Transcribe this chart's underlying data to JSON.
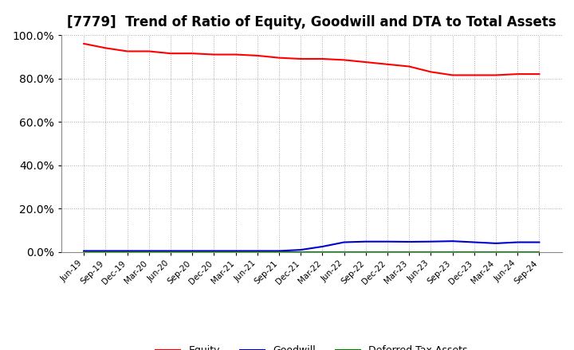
{
  "title": "[7779]  Trend of Ratio of Equity, Goodwill and DTA to Total Assets",
  "x_labels": [
    "Jun-19",
    "Sep-19",
    "Dec-19",
    "Mar-20",
    "Jun-20",
    "Sep-20",
    "Dec-20",
    "Mar-21",
    "Jun-21",
    "Sep-21",
    "Dec-21",
    "Mar-22",
    "Jun-22",
    "Sep-22",
    "Dec-22",
    "Mar-23",
    "Jun-23",
    "Sep-23",
    "Dec-23",
    "Mar-24",
    "Jun-24",
    "Sep-24"
  ],
  "equity": [
    96.0,
    94.0,
    92.5,
    92.5,
    91.5,
    91.5,
    91.0,
    91.0,
    90.5,
    89.5,
    89.0,
    89.0,
    88.5,
    87.5,
    86.5,
    85.5,
    83.0,
    81.5,
    81.5,
    81.5,
    82.0,
    82.0
  ],
  "goodwill": [
    0.5,
    0.5,
    0.5,
    0.5,
    0.5,
    0.5,
    0.5,
    0.5,
    0.5,
    0.5,
    1.0,
    2.5,
    4.5,
    4.8,
    4.8,
    4.7,
    4.8,
    5.0,
    4.5,
    4.0,
    4.5,
    4.5
  ],
  "dta": [
    0.0,
    0.0,
    0.0,
    0.0,
    0.0,
    0.0,
    0.0,
    0.0,
    0.0,
    0.0,
    0.0,
    0.0,
    0.0,
    0.0,
    0.0,
    0.0,
    0.0,
    0.0,
    0.0,
    0.0,
    0.0,
    0.0
  ],
  "equity_color": "#ff0000",
  "goodwill_color": "#0000cc",
  "dta_color": "#008000",
  "ylim": [
    0,
    100
  ],
  "yticks": [
    0,
    20,
    40,
    60,
    80,
    100
  ],
  "background_color": "#ffffff",
  "grid_color": "#aaaaaa",
  "title_fontsize": 12
}
